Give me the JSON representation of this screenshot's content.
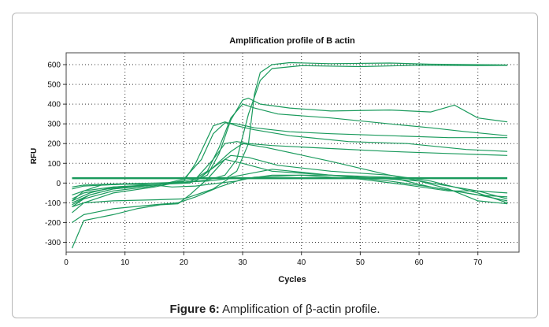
{
  "caption": {
    "label": "Figure 6:",
    "text": "Amplification of β-actin profile."
  },
  "chart_data": {
    "type": "line",
    "title": "Amplification profile of B actin",
    "xlabel": "Cycles",
    "ylabel": "RFU",
    "xlim": [
      0,
      77
    ],
    "ylim": [
      -350,
      660
    ],
    "xticks": [
      0,
      10,
      20,
      30,
      40,
      50,
      60,
      70
    ],
    "yticks": [
      -300,
      -200,
      -100,
      0,
      100,
      200,
      300,
      400,
      500,
      600
    ],
    "grid": true,
    "line_color": "#1a9a5c",
    "threshold": 25,
    "series": [
      {
        "x": [
          1,
          3,
          8,
          15,
          20,
          24,
          27,
          29,
          31,
          32,
          33,
          35,
          38,
          45,
          55,
          62,
          70,
          75
        ],
        "y": [
          -20,
          -10,
          -5,
          0,
          5,
          10,
          20,
          60,
          200,
          450,
          560,
          600,
          610,
          605,
          608,
          602,
          600,
          598
        ]
      },
      {
        "x": [
          1,
          3,
          8,
          15,
          20,
          24,
          27,
          29,
          31,
          33,
          35,
          40,
          50,
          60,
          70,
          75
        ],
        "y": [
          -30,
          -15,
          -8,
          -2,
          4,
          15,
          40,
          120,
          350,
          520,
          580,
          595,
          590,
          597,
          595,
          596
        ]
      },
      {
        "x": [
          1,
          3,
          8,
          15,
          21,
          24,
          26,
          28,
          30,
          31,
          33,
          38,
          45,
          55,
          62,
          66,
          70,
          75
        ],
        "y": [
          -60,
          -40,
          -20,
          -8,
          0,
          40,
          150,
          320,
          420,
          430,
          400,
          380,
          365,
          370,
          360,
          395,
          330,
          310
        ]
      },
      {
        "x": [
          1,
          3,
          8,
          15,
          21,
          24,
          26,
          28,
          30,
          32,
          36,
          45,
          55,
          62,
          68,
          75
        ],
        "y": [
          -80,
          -50,
          -25,
          -10,
          5,
          60,
          180,
          330,
          400,
          380,
          350,
          330,
          300,
          280,
          260,
          240
        ]
      },
      {
        "x": [
          1,
          3,
          8,
          15,
          20,
          23,
          25,
          27,
          29,
          32,
          38,
          45,
          55,
          65,
          75
        ],
        "y": [
          -120,
          -80,
          -40,
          -15,
          20,
          120,
          250,
          305,
          300,
          280,
          260,
          250,
          240,
          230,
          230
        ]
      },
      {
        "x": [
          1,
          3,
          8,
          15,
          20,
          22,
          25,
          27,
          29,
          32,
          38,
          48,
          58,
          68,
          75
        ],
        "y": [
          -150,
          -100,
          -50,
          -20,
          10,
          100,
          290,
          310,
          290,
          270,
          240,
          210,
          200,
          170,
          160
        ]
      },
      {
        "x": [
          1,
          4,
          8,
          15,
          22,
          25,
          27,
          29,
          31,
          35,
          45,
          55,
          65,
          75
        ],
        "y": [
          -110,
          -60,
          -30,
          -10,
          20,
          120,
          200,
          210,
          200,
          190,
          175,
          160,
          150,
          140
        ]
      },
      {
        "x": [
          1,
          4,
          8,
          15,
          22,
          25,
          28,
          30,
          34,
          45,
          55,
          62,
          70,
          75
        ],
        "y": [
          -90,
          -50,
          -20,
          -10,
          10,
          80,
          160,
          200,
          180,
          110,
          40,
          10,
          -50,
          -100
        ]
      },
      {
        "x": [
          1,
          4,
          8,
          15,
          22,
          26,
          28,
          31,
          36,
          45,
          55,
          62,
          70,
          75
        ],
        "y": [
          -100,
          -60,
          -30,
          -10,
          10,
          100,
          140,
          130,
          90,
          60,
          40,
          0,
          -40,
          -80
        ]
      },
      {
        "x": [
          1,
          3,
          8,
          12,
          16,
          19,
          21,
          24,
          27,
          30,
          35,
          45,
          55,
          60,
          65,
          70,
          75
        ],
        "y": [
          -330,
          -190,
          -160,
          -130,
          -110,
          -105,
          -60,
          20,
          120,
          100,
          60,
          40,
          20,
          10,
          -30,
          -90,
          -105
        ]
      },
      {
        "x": [
          1,
          3,
          8,
          15,
          19,
          22,
          26,
          30,
          35,
          45,
          55,
          62,
          70,
          75
        ],
        "y": [
          -200,
          -160,
          -130,
          -110,
          -100,
          -70,
          -20,
          20,
          40,
          40,
          30,
          -20,
          -60,
          -70
        ]
      },
      {
        "x": [
          1,
          3,
          8,
          15,
          20,
          25,
          28,
          35,
          45,
          55,
          62,
          70,
          75
        ],
        "y": [
          -120,
          -100,
          -90,
          -85,
          -80,
          -30,
          30,
          70,
          40,
          10,
          -20,
          -60,
          -90
        ]
      },
      {
        "x": [
          1,
          3,
          6,
          10,
          15,
          18,
          22,
          26,
          29,
          32,
          40,
          50,
          58,
          65,
          70,
          75
        ],
        "y": [
          -90,
          -40,
          -10,
          -5,
          -10,
          -20,
          -15,
          0,
          10,
          30,
          40,
          20,
          -10,
          -40,
          -40,
          -50
        ]
      }
    ]
  }
}
